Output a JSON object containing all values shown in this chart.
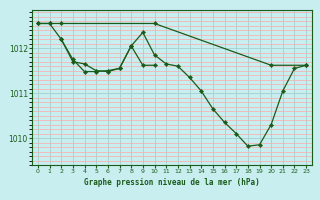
{
  "title": "Graphe pression niveau de la mer (hPa)",
  "bg_color": "#c8eef0",
  "grid_color_major": "#aad4d4",
  "grid_color_minor": "#ffcccc",
  "line_color": "#1a5c1a",
  "marker_color": "#1a5c1a",
  "xlim": [
    -0.5,
    23.5
  ],
  "ylim": [
    1009.4,
    1012.85
  ],
  "xticks": [
    0,
    1,
    2,
    3,
    4,
    5,
    6,
    7,
    8,
    9,
    10,
    11,
    12,
    13,
    14,
    15,
    16,
    17,
    18,
    19,
    20,
    21,
    22,
    23
  ],
  "yticks": [
    1010,
    1011,
    1012
  ],
  "series": [
    {
      "x": [
        0,
        1,
        2,
        3,
        4,
        5,
        6,
        7,
        8,
        9,
        10,
        11,
        12,
        13,
        14,
        15,
        16,
        17,
        18,
        19,
        20,
        21,
        22,
        23
      ],
      "y": [
        1012.55,
        1012.55,
        1012.2,
        1011.7,
        1011.65,
        1011.5,
        1011.48,
        1011.55,
        1012.05,
        1012.35,
        1011.85,
        1011.65,
        1011.6,
        1011.35,
        1011.05,
        1010.65,
        1010.35,
        1010.1,
        1009.82,
        1009.85,
        1010.3,
        1011.05,
        1011.55,
        1011.62
      ]
    },
    {
      "x": [
        0,
        1,
        2,
        10,
        20,
        23
      ],
      "y": [
        1012.55,
        1012.55,
        1012.55,
        1012.55,
        1011.62,
        1011.62
      ]
    },
    {
      "x": [
        2,
        3,
        4,
        5,
        6,
        7,
        8,
        9,
        10
      ],
      "y": [
        1012.2,
        1011.75,
        1011.48,
        1011.48,
        1011.5,
        1011.55,
        1012.05,
        1011.62,
        1011.62
      ]
    }
  ]
}
